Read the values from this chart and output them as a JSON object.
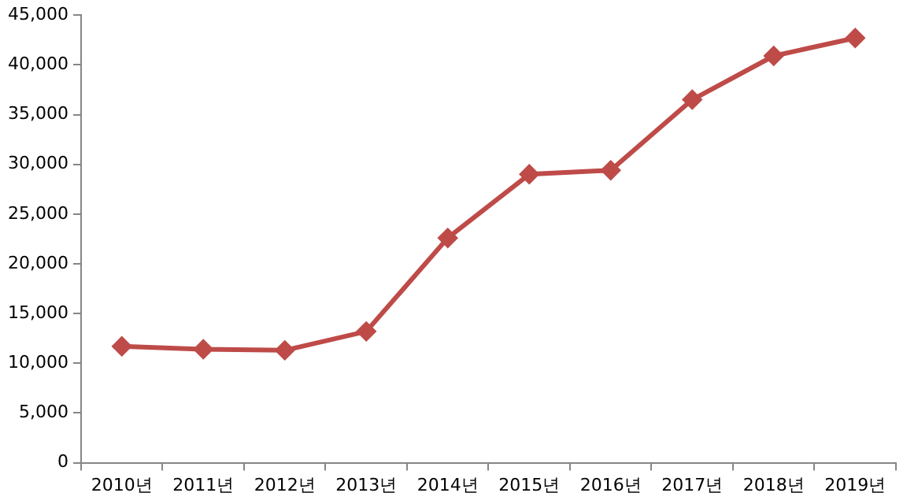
{
  "chart_data": {
    "type": "line",
    "categories": [
      "2010년",
      "2011년",
      "2012년",
      "2013년",
      "2014년",
      "2015년",
      "2016년",
      "2017년",
      "2018년",
      "2019년"
    ],
    "series": [
      {
        "color": "#be4b48",
        "values": [
          11700,
          11400,
          11300,
          13200,
          22600,
          29000,
          29400,
          36500,
          40900,
          42700
        ]
      }
    ],
    "ylim": [
      0,
      45000
    ],
    "yticks": [
      {
        "value": 0,
        "label": "0"
      },
      {
        "value": 5000,
        "label": "5,000"
      },
      {
        "value": 10000,
        "label": "10,000"
      },
      {
        "value": 15000,
        "label": "15,000"
      },
      {
        "value": 20000,
        "label": "20,000"
      },
      {
        "value": 25000,
        "label": "25,000"
      },
      {
        "value": 30000,
        "label": "30,000"
      },
      {
        "value": 35000,
        "label": "35,000"
      },
      {
        "value": 40000,
        "label": "40,000"
      },
      {
        "value": 45000,
        "label": "45,000"
      }
    ],
    "grid": false,
    "legend": false,
    "marker": "diamond",
    "line_style": "solid"
  }
}
